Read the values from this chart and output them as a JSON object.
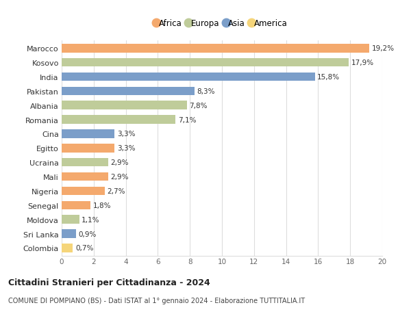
{
  "countries": [
    "Marocco",
    "Kosovo",
    "India",
    "Pakistan",
    "Albania",
    "Romania",
    "Cina",
    "Egitto",
    "Ucraina",
    "Mali",
    "Nigeria",
    "Senegal",
    "Moldova",
    "Sri Lanka",
    "Colombia"
  ],
  "values": [
    19.2,
    17.9,
    15.8,
    8.3,
    7.8,
    7.1,
    3.3,
    3.3,
    2.9,
    2.9,
    2.7,
    1.8,
    1.1,
    0.9,
    0.7
  ],
  "labels": [
    "19,2%",
    "17,9%",
    "15,8%",
    "8,3%",
    "7,8%",
    "7,1%",
    "3,3%",
    "3,3%",
    "2,9%",
    "2,9%",
    "2,7%",
    "1,8%",
    "1,1%",
    "0,9%",
    "0,7%"
  ],
  "continents": [
    "Africa",
    "Europa",
    "Asia",
    "Asia",
    "Europa",
    "Europa",
    "Asia",
    "Africa",
    "Europa",
    "Africa",
    "Africa",
    "Africa",
    "Europa",
    "Asia",
    "America"
  ],
  "colors": {
    "Africa": "#F4A96D",
    "Europa": "#BFCC9A",
    "Asia": "#7B9EC9",
    "America": "#F5D57A"
  },
  "legend_order": [
    "Africa",
    "Europa",
    "Asia",
    "America"
  ],
  "title": "Cittadini Stranieri per Cittadinanza - 2024",
  "subtitle": "COMUNE DI POMPIANO (BS) - Dati ISTAT al 1° gennaio 2024 - Elaborazione TUTTITALIA.IT",
  "xlim": [
    0,
    20
  ],
  "xticks": [
    0,
    2,
    4,
    6,
    8,
    10,
    12,
    14,
    16,
    18,
    20
  ],
  "background_color": "#ffffff",
  "grid_color": "#dddddd",
  "bar_height": 0.6
}
